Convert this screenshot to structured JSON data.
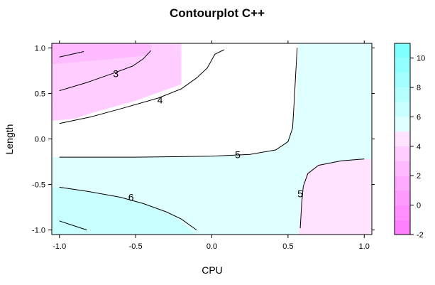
{
  "chart_data": {
    "type": "contour",
    "title": "Contourplot C++",
    "xlabel": "CPU",
    "ylabel": "Length",
    "xlim": [
      -1.05,
      1.05
    ],
    "ylim": [
      -1.05,
      1.05
    ],
    "x_ticks": [
      {
        "value": -1.0,
        "label": "-1.0"
      },
      {
        "value": -0.5,
        "label": "-0.5"
      },
      {
        "value": 0.0,
        "label": "0.0"
      },
      {
        "value": 0.5,
        "label": "0.5"
      },
      {
        "value": 1.0,
        "label": "1.0"
      }
    ],
    "y_ticks": [
      {
        "value": -1.0,
        "label": "-1.0"
      },
      {
        "value": -0.5,
        "label": "-0.5"
      },
      {
        "value": 0.0,
        "label": "0.0"
      },
      {
        "value": 0.5,
        "label": "0.5"
      },
      {
        "value": 1.0,
        "label": "1.0"
      }
    ],
    "colorbar": {
      "min": -2,
      "max": 11,
      "ticks": [
        {
          "value": -2,
          "label": "-2"
        },
        {
          "value": 0,
          "label": "0"
        },
        {
          "value": 2,
          "label": "2"
        },
        {
          "value": 4,
          "label": "4"
        },
        {
          "value": 6,
          "label": "6"
        },
        {
          "value": 8,
          "label": "8"
        },
        {
          "value": 10,
          "label": "10"
        }
      ],
      "bands": [
        {
          "from": -2,
          "to": -1,
          "color": "#ff80ff"
        },
        {
          "from": -1,
          "to": 0,
          "color": "#ff8dff"
        },
        {
          "from": 0,
          "to": 1,
          "color": "#ff9bff"
        },
        {
          "from": 1,
          "to": 2,
          "color": "#ffaaff"
        },
        {
          "from": 2,
          "to": 3,
          "color": "#ffbbff"
        },
        {
          "from": 3,
          "to": 4,
          "color": "#ffcdff"
        },
        {
          "from": 4,
          "to": 5,
          "color": "#ffe3ff"
        },
        {
          "from": 5,
          "to": 6,
          "color": "#e0ffff"
        },
        {
          "from": 6,
          "to": 7,
          "color": "#c9ffff"
        },
        {
          "from": 7,
          "to": 8,
          "color": "#b5ffff"
        },
        {
          "from": 8,
          "to": 9,
          "color": "#a3ffff"
        },
        {
          "from": 9,
          "to": 10,
          "color": "#93ffff"
        },
        {
          "from": 10,
          "to": 11,
          "color": "#80ffff"
        }
      ]
    },
    "regions": [
      {
        "level_from": 2,
        "level_to": 3,
        "color": "#ffbbff",
        "points": [
          [
            -1.05,
            1.05
          ],
          [
            -0.4,
            1.05
          ],
          [
            -0.4,
            0.92
          ],
          [
            -0.7,
            0.87
          ],
          [
            -1.05,
            0.82
          ]
        ]
      },
      {
        "level_from": 3,
        "level_to": 4,
        "color": "#ffcdff",
        "points": [
          [
            -0.4,
            1.05
          ],
          [
            -0.2,
            1.05
          ],
          [
            -0.2,
            1.0
          ],
          [
            -0.4,
            0.88
          ],
          [
            -0.6,
            0.74
          ],
          [
            -0.8,
            0.66
          ],
          [
            -1.0,
            0.62
          ],
          [
            -1.05,
            0.6
          ],
          [
            -1.05,
            0.82
          ],
          [
            -0.7,
            0.87
          ],
          [
            -0.4,
            0.92
          ]
        ]
      },
      {
        "level_from": 3,
        "level_to": 4,
        "color": "#ffcdff",
        "points": [
          [
            -1.05,
            0.6
          ],
          [
            -1.0,
            0.62
          ],
          [
            -0.8,
            0.66
          ],
          [
            -0.6,
            0.74
          ],
          [
            -0.4,
            0.88
          ],
          [
            -0.2,
            1.0
          ],
          [
            -0.4,
            0.78
          ],
          [
            -0.6,
            0.6
          ],
          [
            -0.8,
            0.45
          ],
          [
            -1.05,
            0.35
          ]
        ]
      },
      {
        "level_from": 3,
        "level_to": 4,
        "color": "#ffcdff",
        "points": [
          [
            -1.05,
            0.35
          ],
          [
            -0.8,
            0.45
          ],
          [
            -0.6,
            0.6
          ],
          [
            -0.4,
            0.78
          ],
          [
            -0.2,
            1.0
          ],
          [
            -0.2,
            0.6
          ],
          [
            -0.5,
            0.42
          ],
          [
            -0.8,
            0.28
          ],
          [
            -0.9,
            0.22
          ],
          [
            -1.05,
            0.2
          ]
        ]
      },
      {
        "level_from": 5,
        "level_to": 6,
        "color": "#e0ffff",
        "points": [
          [
            -1.05,
            -0.2
          ],
          [
            -0.1,
            -0.2
          ],
          [
            0.3,
            -0.17
          ],
          [
            0.45,
            -0.1
          ],
          [
            0.52,
            0.05
          ],
          [
            0.55,
            0.3
          ],
          [
            0.56,
            0.6
          ],
          [
            0.57,
            1.05
          ],
          [
            1.05,
            1.05
          ],
          [
            1.05,
            -1.05
          ],
          [
            -1.05,
            -1.05
          ]
        ]
      },
      {
        "level_from": 4,
        "level_to": 5,
        "color": "#ffe3ff",
        "points": [
          [
            0.57,
            -1.05
          ],
          [
            0.59,
            -0.6
          ],
          [
            0.62,
            -0.38
          ],
          [
            0.7,
            -0.28
          ],
          [
            0.85,
            -0.24
          ],
          [
            1.05,
            -0.22
          ],
          [
            1.05,
            -1.05
          ]
        ]
      },
      {
        "level_from": 6,
        "level_to": 7,
        "color": "#c9ffff",
        "points": [
          [
            -1.05,
            -0.53
          ],
          [
            -0.8,
            -0.58
          ],
          [
            -0.55,
            -0.66
          ],
          [
            -0.4,
            -0.74
          ],
          [
            -0.25,
            -0.85
          ],
          [
            -0.1,
            -1.05
          ],
          [
            -1.05,
            -1.05
          ]
        ]
      }
    ],
    "contour_lines": [
      {
        "level": 3,
        "points": [
          [
            -1.0,
            0.9
          ],
          [
            -0.92,
            0.93
          ],
          [
            -0.84,
            0.96
          ]
        ]
      },
      {
        "level": 3,
        "points": [
          [
            -1.0,
            0.53
          ],
          [
            -0.82,
            0.62
          ],
          [
            -0.65,
            0.72
          ],
          [
            -0.52,
            0.8
          ],
          [
            -0.45,
            0.88
          ],
          [
            -0.4,
            0.97
          ]
        ]
      },
      {
        "level": 4,
        "points": [
          [
            -1.0,
            0.17
          ],
          [
            -0.8,
            0.24
          ],
          [
            -0.6,
            0.33
          ],
          [
            -0.35,
            0.45
          ],
          [
            -0.2,
            0.55
          ],
          [
            -0.1,
            0.67
          ],
          [
            -0.03,
            0.78
          ],
          [
            0.02,
            0.93
          ],
          [
            0.08,
            0.98
          ]
        ]
      },
      {
        "level": 5,
        "points": [
          [
            -1.0,
            -0.2
          ],
          [
            -0.5,
            -0.2
          ],
          [
            0.0,
            -0.19
          ],
          [
            0.25,
            -0.17
          ],
          [
            0.42,
            -0.12
          ],
          [
            0.5,
            -0.03
          ],
          [
            0.53,
            0.12
          ],
          [
            0.54,
            0.4
          ],
          [
            0.55,
            0.7
          ],
          [
            0.56,
            1.0
          ]
        ]
      },
      {
        "level": 5,
        "points": [
          [
            0.58,
            -0.98
          ],
          [
            0.59,
            -0.7
          ],
          [
            0.6,
            -0.52
          ],
          [
            0.63,
            -0.38
          ],
          [
            0.7,
            -0.29
          ],
          [
            0.85,
            -0.24
          ],
          [
            1.0,
            -0.22
          ]
        ]
      },
      {
        "level": 6,
        "points": [
          [
            -1.0,
            -0.53
          ],
          [
            -0.8,
            -0.58
          ],
          [
            -0.6,
            -0.64
          ],
          [
            -0.45,
            -0.71
          ],
          [
            -0.3,
            -0.8
          ],
          [
            -0.2,
            -0.88
          ],
          [
            -0.1,
            -1.0
          ]
        ]
      },
      {
        "level": 6,
        "points": [
          [
            -1.0,
            -0.9
          ],
          [
            -0.93,
            -0.94
          ],
          [
            -0.82,
            -1.0
          ]
        ]
      }
    ],
    "contour_labels": [
      {
        "text": "3",
        "x": -0.63,
        "y": 0.72
      },
      {
        "text": "4",
        "x": -0.34,
        "y": 0.43
      },
      {
        "text": "5",
        "x": 0.17,
        "y": -0.17
      },
      {
        "text": "5",
        "x": 0.58,
        "y": -0.6
      },
      {
        "text": "6",
        "x": -0.53,
        "y": -0.64
      }
    ]
  }
}
